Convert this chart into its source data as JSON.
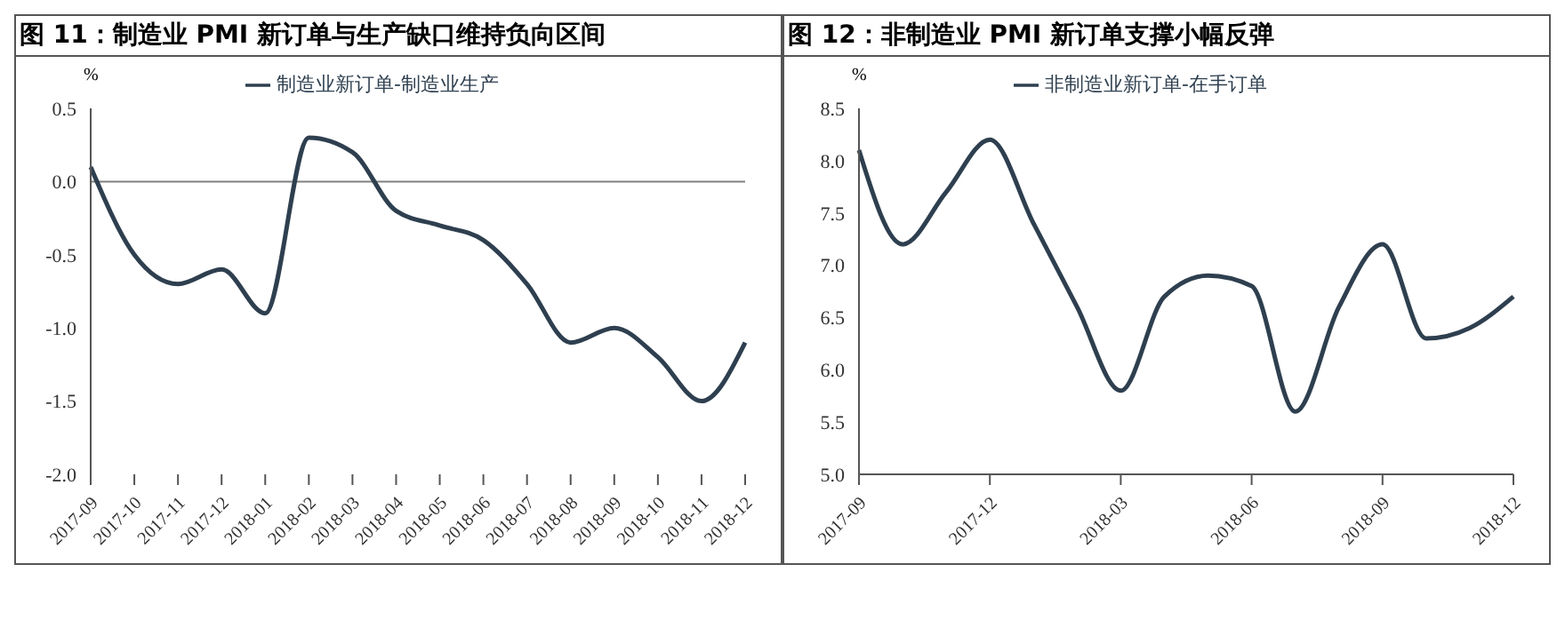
{
  "chart_data": [
    {
      "type": "line",
      "title": "图 11：制造业 PMI 新订单与生产缺口维持负向区间",
      "ylabel": "%",
      "categories": [
        "2017-09",
        "2017-10",
        "2017-11",
        "2017-12",
        "2018-01",
        "2018-02",
        "2018-03",
        "2018-04",
        "2018-05",
        "2018-06",
        "2018-07",
        "2018-08",
        "2018-09",
        "2018-10",
        "2018-11",
        "2018-12"
      ],
      "series": [
        {
          "name": "制造业新订单-制造业生产",
          "color": "#2e3f4f",
          "values": [
            0.1,
            -0.5,
            -0.7,
            -0.6,
            -0.9,
            0.3,
            0.2,
            -0.2,
            -0.3,
            -0.4,
            -0.7,
            -1.1,
            -1.0,
            -1.2,
            -1.5,
            -1.1
          ]
        }
      ],
      "ylim": [
        -2.0,
        0.5
      ],
      "yticks": [
        {
          "value": -2,
          "label": "-2.0"
        },
        {
          "value": -1.5,
          "label": "-1.5"
        },
        {
          "value": -1,
          "label": "-1.0"
        },
        {
          "value": -0.5,
          "label": "-0.5"
        },
        {
          "value": 0,
          "label": "0.0"
        },
        {
          "value": 0.5,
          "label": "0.5"
        }
      ],
      "ref_lines": [
        {
          "axis": "y",
          "value": 0,
          "color": "#808080"
        }
      ],
      "grid": false,
      "legend": "top",
      "marker": "none",
      "line_style": "solid"
    },
    {
      "type": "line",
      "title": "图 12：非制造业 PMI 新订单支撑小幅反弹",
      "ylabel": "%",
      "categories": [
        "2017-09",
        null,
        null,
        "2017-12",
        null,
        null,
        "2018-03",
        null,
        null,
        "2018-06",
        null,
        null,
        "2018-09",
        null,
        null,
        "2018-12"
      ],
      "series": [
        {
          "name": "非制造业新订单-在手订单",
          "color": "#2e3f4f",
          "values": [
            8.1,
            7.2,
            7.7,
            8.2,
            7.4,
            6.6,
            5.8,
            6.7,
            6.9,
            6.8,
            5.6,
            6.6,
            7.2,
            6.3,
            6.4,
            6.7
          ]
        }
      ],
      "ylim": [
        5.0,
        8.5
      ],
      "yticks": [
        {
          "value": 5,
          "label": "5.0"
        },
        {
          "value": 5.5,
          "label": "5.5"
        },
        {
          "value": 6,
          "label": "6.0"
        },
        {
          "value": 6.5,
          "label": "6.5"
        },
        {
          "value": 7,
          "label": "7.0"
        },
        {
          "value": 7.5,
          "label": "7.5"
        },
        {
          "value": 8,
          "label": "8.0"
        },
        {
          "value": 8.5,
          "label": "8.5"
        }
      ],
      "grid": false,
      "legend": "top",
      "marker": "none",
      "line_style": "solid"
    }
  ]
}
